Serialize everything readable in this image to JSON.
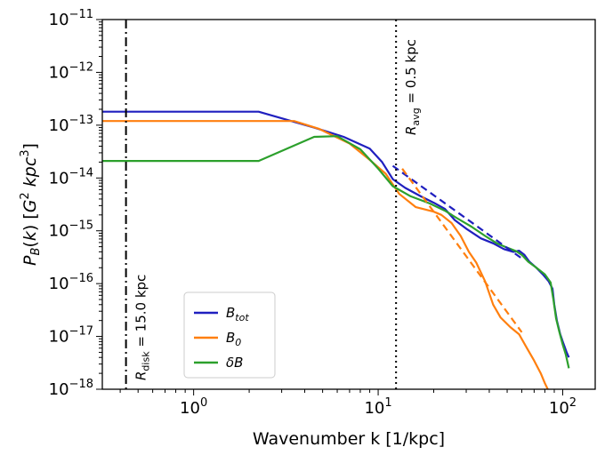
{
  "chart_data": {
    "type": "line",
    "xscale": "log",
    "yscale": "log",
    "xlim": [
      0.32,
      150
    ],
    "ylim": [
      1e-18,
      1e-11
    ],
    "xlabel": "Wavenumber k [1/kpc]",
    "ylabel": "P_B(k) [G^2 kpc^3]",
    "x_ticks": [
      {
        "base": "10",
        "exp": "0",
        "value": 1
      },
      {
        "base": "10",
        "exp": "1",
        "value": 10
      },
      {
        "base": "10",
        "exp": "2",
        "value": 100
      }
    ],
    "y_ticks": [
      {
        "base": "10",
        "exp": "−11",
        "value": 1e-11
      },
      {
        "base": "10",
        "exp": "−12",
        "value": 1e-12
      },
      {
        "base": "10",
        "exp": "−13",
        "value": 1e-13
      },
      {
        "base": "10",
        "exp": "−14",
        "value": 1e-14
      },
      {
        "base": "10",
        "exp": "−15",
        "value": 1e-15
      },
      {
        "base": "10",
        "exp": "−16",
        "value": 1e-16
      },
      {
        "base": "10",
        "exp": "−17",
        "value": 1e-17
      },
      {
        "base": "10",
        "exp": "−18",
        "value": 1e-18
      }
    ],
    "legend_position": "lower-left",
    "series": [
      {
        "name": "B_tot",
        "color": "#1f1fbf",
        "points": [
          [
            0.32,
            1.8e-13
          ],
          [
            2.25,
            1.8e-13
          ],
          [
            4.5,
            9e-14
          ],
          [
            6.5,
            6e-14
          ],
          [
            9,
            3.6e-14
          ],
          [
            10.5,
            2e-14
          ],
          [
            12,
            9.5e-15
          ],
          [
            14,
            6.5e-15
          ],
          [
            17,
            4.5e-15
          ],
          [
            20,
            3.4e-15
          ],
          [
            23,
            2.6e-15
          ],
          [
            26,
            1.6e-15
          ],
          [
            30,
            1.1e-15
          ],
          [
            36,
            7.2e-16
          ],
          [
            42,
            5.8e-16
          ],
          [
            48,
            4.5e-16
          ],
          [
            54,
            4e-16
          ],
          [
            58,
            4.2e-16
          ],
          [
            62,
            3.5e-16
          ],
          [
            66,
            2.6e-16
          ],
          [
            72,
            2e-16
          ],
          [
            78,
            1.5e-16
          ],
          [
            84,
            1.1e-16
          ],
          [
            88,
            8e-17
          ],
          [
            90,
            4e-17
          ],
          [
            93,
            2e-17
          ],
          [
            97,
            1.1e-17
          ],
          [
            100,
            8e-18
          ],
          [
            105,
            5e-18
          ],
          [
            108,
            4e-18
          ]
        ]
      },
      {
        "name": "B_0",
        "color": "#ff7f0e",
        "points": [
          [
            0.32,
            1.2e-13
          ],
          [
            3.5,
            1.2e-13
          ],
          [
            4.8,
            8.5e-14
          ],
          [
            7,
            4.5e-14
          ],
          [
            9,
            2.2e-14
          ],
          [
            11,
            1.2e-14
          ],
          [
            13,
            5e-15
          ],
          [
            16,
            2.8e-15
          ],
          [
            20,
            2.3e-15
          ],
          [
            22,
            2e-15
          ],
          [
            25,
            1.4e-15
          ],
          [
            28,
            8e-16
          ],
          [
            31,
            4e-16
          ],
          [
            34,
            2.5e-16
          ],
          [
            38,
            1.1e-16
          ],
          [
            42,
            4e-17
          ],
          [
            46,
            2.3e-17
          ],
          [
            52,
            1.5e-17
          ],
          [
            58,
            1.1e-17
          ],
          [
            64,
            6e-18
          ],
          [
            70,
            3.5e-18
          ],
          [
            76,
            2e-18
          ],
          [
            80,
            1.3e-18
          ],
          [
            83,
            1e-18
          ]
        ]
      },
      {
        "name": "δB",
        "color": "#2ca02c",
        "points": [
          [
            0.32,
            2.1e-14
          ],
          [
            2.25,
            2.1e-14
          ],
          [
            4.5,
            6e-14
          ],
          [
            6,
            6.2e-14
          ],
          [
            8,
            3.5e-14
          ],
          [
            10,
            1.5e-14
          ],
          [
            12,
            7e-15
          ],
          [
            15,
            4.5e-15
          ],
          [
            19,
            3.3e-15
          ],
          [
            23,
            2.4e-15
          ],
          [
            27,
            1.7e-15
          ],
          [
            32,
            1.2e-15
          ],
          [
            38,
            8e-16
          ],
          [
            44,
            5.8e-16
          ],
          [
            50,
            4.8e-16
          ],
          [
            56,
            4.1e-16
          ],
          [
            60,
            3.5e-16
          ],
          [
            65,
            2.6e-16
          ],
          [
            72,
            2e-16
          ],
          [
            80,
            1.5e-16
          ],
          [
            86,
            1.05e-16
          ],
          [
            89,
            5e-17
          ],
          [
            92,
            2.2e-17
          ],
          [
            96,
            1.2e-17
          ],
          [
            100,
            7e-18
          ],
          [
            104,
            4.5e-18
          ],
          [
            108,
            2.5e-18
          ]
        ]
      }
    ],
    "fits": [
      {
        "series": "B_tot",
        "color": "#1f1fbf",
        "points": [
          [
            12,
            1.7e-14
          ],
          [
            60,
            3e-16
          ]
        ]
      },
      {
        "series": "B_0",
        "color": "#ff7f0e",
        "points": [
          [
            13.5,
            1.5e-14
          ],
          [
            60,
            1.2e-17
          ]
        ]
      }
    ],
    "vlines": [
      {
        "x": 0.43,
        "style": "dashdot",
        "label_main": "R",
        "label_sub": "disk",
        "label_value": " = 15.0 kpc"
      },
      {
        "x": 12.5,
        "style": "dotted",
        "label_main": "R",
        "label_sub": "avg",
        "label_value": " = 0.5 kpc"
      }
    ],
    "legend": [
      {
        "main": "B",
        "sub": "tot",
        "color": "#1f1fbf"
      },
      {
        "main": "B",
        "sub": "0",
        "color": "#ff7f0e"
      },
      {
        "main": "δB",
        "sub": "",
        "color": "#2ca02c"
      }
    ]
  }
}
